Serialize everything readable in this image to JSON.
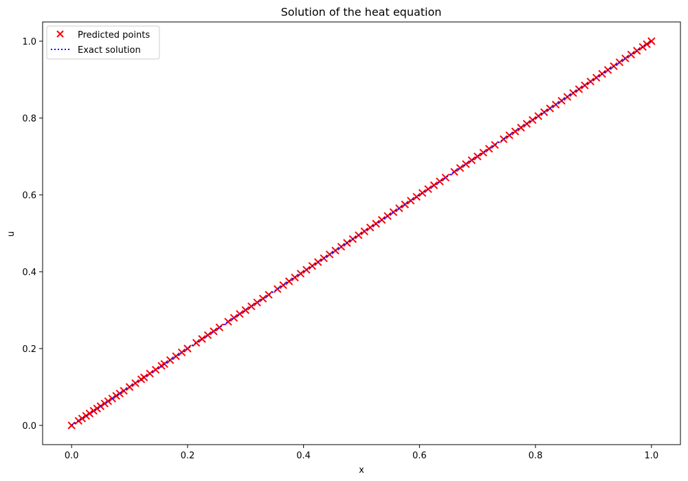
{
  "chart_data": {
    "type": "scatter",
    "title": "Solution of the heat equation",
    "xlabel": "x",
    "ylabel": "u",
    "xlim": [
      -0.05,
      1.05
    ],
    "ylim": [
      -0.05,
      1.05
    ],
    "xticks": [
      0.0,
      0.2,
      0.4,
      0.6,
      0.8,
      1.0
    ],
    "yticks": [
      0.0,
      0.2,
      0.4,
      0.6,
      0.8,
      1.0
    ],
    "xtick_labels": [
      "0.0",
      "0.2",
      "0.4",
      "0.6",
      "0.8",
      "1.0"
    ],
    "ytick_labels": [
      "0.0",
      "0.2",
      "0.4",
      "0.6",
      "0.8",
      "1.0"
    ],
    "grid": false,
    "legend_position": "top-left",
    "series": [
      {
        "name": "Predicted points",
        "kind": "scatter",
        "marker": "x",
        "color": "#ff0000",
        "relation": "u = x",
        "x": [
          0.0,
          0.012,
          0.018,
          0.025,
          0.031,
          0.038,
          0.044,
          0.05,
          0.057,
          0.063,
          0.07,
          0.077,
          0.083,
          0.09,
          0.1,
          0.11,
          0.12,
          0.125,
          0.135,
          0.145,
          0.155,
          0.16,
          0.17,
          0.18,
          0.19,
          0.2,
          0.215,
          0.225,
          0.235,
          0.245,
          0.255,
          0.27,
          0.28,
          0.29,
          0.3,
          0.31,
          0.32,
          0.33,
          0.34,
          0.355,
          0.365,
          0.375,
          0.385,
          0.395,
          0.405,
          0.415,
          0.425,
          0.435,
          0.445,
          0.455,
          0.465,
          0.475,
          0.485,
          0.495,
          0.505,
          0.515,
          0.525,
          0.535,
          0.545,
          0.555,
          0.565,
          0.575,
          0.585,
          0.595,
          0.605,
          0.615,
          0.625,
          0.635,
          0.645,
          0.66,
          0.67,
          0.68,
          0.69,
          0.7,
          0.71,
          0.72,
          0.73,
          0.745,
          0.755,
          0.765,
          0.775,
          0.785,
          0.795,
          0.805,
          0.815,
          0.825,
          0.835,
          0.845,
          0.855,
          0.865,
          0.875,
          0.885,
          0.895,
          0.905,
          0.915,
          0.925,
          0.935,
          0.945,
          0.955,
          0.965,
          0.975,
          0.985,
          0.992,
          1.0
        ],
        "y": [
          0.0,
          0.012,
          0.018,
          0.025,
          0.031,
          0.038,
          0.044,
          0.05,
          0.057,
          0.063,
          0.07,
          0.077,
          0.083,
          0.09,
          0.1,
          0.11,
          0.12,
          0.125,
          0.135,
          0.145,
          0.155,
          0.16,
          0.17,
          0.18,
          0.19,
          0.2,
          0.215,
          0.225,
          0.235,
          0.245,
          0.255,
          0.27,
          0.28,
          0.29,
          0.3,
          0.31,
          0.32,
          0.33,
          0.34,
          0.355,
          0.365,
          0.375,
          0.385,
          0.395,
          0.405,
          0.415,
          0.425,
          0.435,
          0.445,
          0.455,
          0.465,
          0.475,
          0.485,
          0.495,
          0.505,
          0.515,
          0.525,
          0.535,
          0.545,
          0.555,
          0.565,
          0.575,
          0.585,
          0.595,
          0.605,
          0.615,
          0.625,
          0.635,
          0.645,
          0.66,
          0.67,
          0.68,
          0.69,
          0.7,
          0.71,
          0.72,
          0.73,
          0.745,
          0.755,
          0.765,
          0.775,
          0.785,
          0.795,
          0.805,
          0.815,
          0.825,
          0.835,
          0.845,
          0.855,
          0.865,
          0.875,
          0.885,
          0.895,
          0.905,
          0.915,
          0.925,
          0.935,
          0.945,
          0.955,
          0.965,
          0.975,
          0.985,
          0.992,
          1.0
        ]
      },
      {
        "name": "Exact solution",
        "kind": "line",
        "line_style": "dotted",
        "color": "#0000ff",
        "relation": "u = x",
        "x": [
          0.0,
          1.0
        ],
        "y": [
          0.0,
          1.0
        ]
      }
    ]
  }
}
